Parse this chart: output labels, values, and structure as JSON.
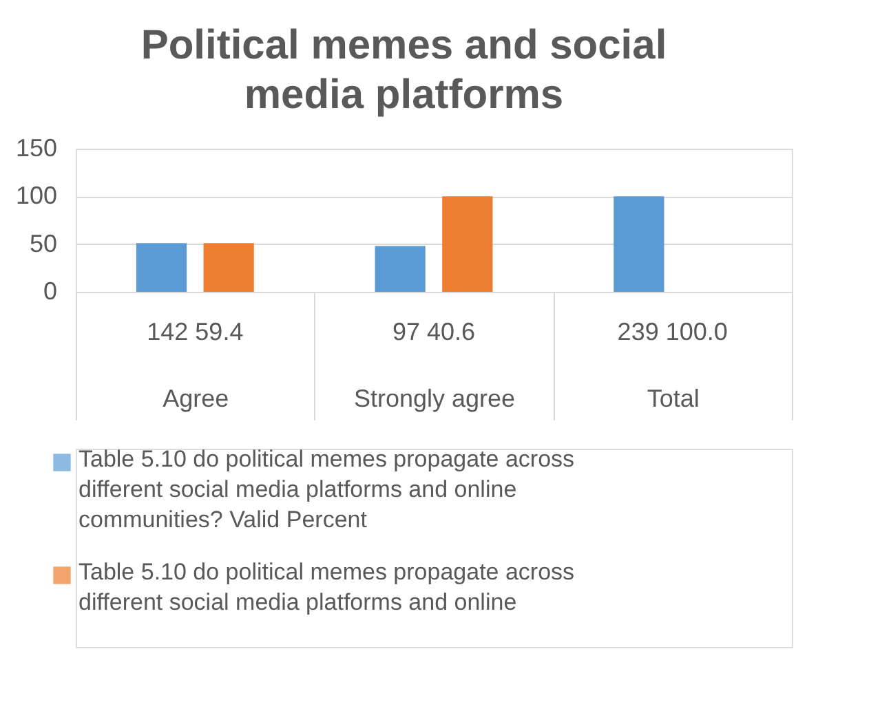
{
  "chart_data": {
    "type": "bar",
    "title": "Political memes and social media platforms",
    "categories": [
      "Agree",
      "Strongly agree",
      "Total"
    ],
    "series": [
      {
        "name": "Table 5.10 do political memes propagate across different social media platforms and online communities?  Valid Percent",
        "color": "#5b9bd5",
        "values": [
          51,
          48,
          100
        ]
      },
      {
        "name": "Table 5.10 do political memes propagate across different social media platforms and online",
        "color": "#ed7d31",
        "values": [
          51,
          100,
          null
        ]
      }
    ],
    "annotations": [
      "142  59.4",
      "97  40.6",
      "239  100.0"
    ],
    "ylim": [
      0,
      150
    ],
    "yticks": [
      0,
      50,
      100,
      150
    ],
    "grid": "y",
    "legend": "bottom"
  }
}
